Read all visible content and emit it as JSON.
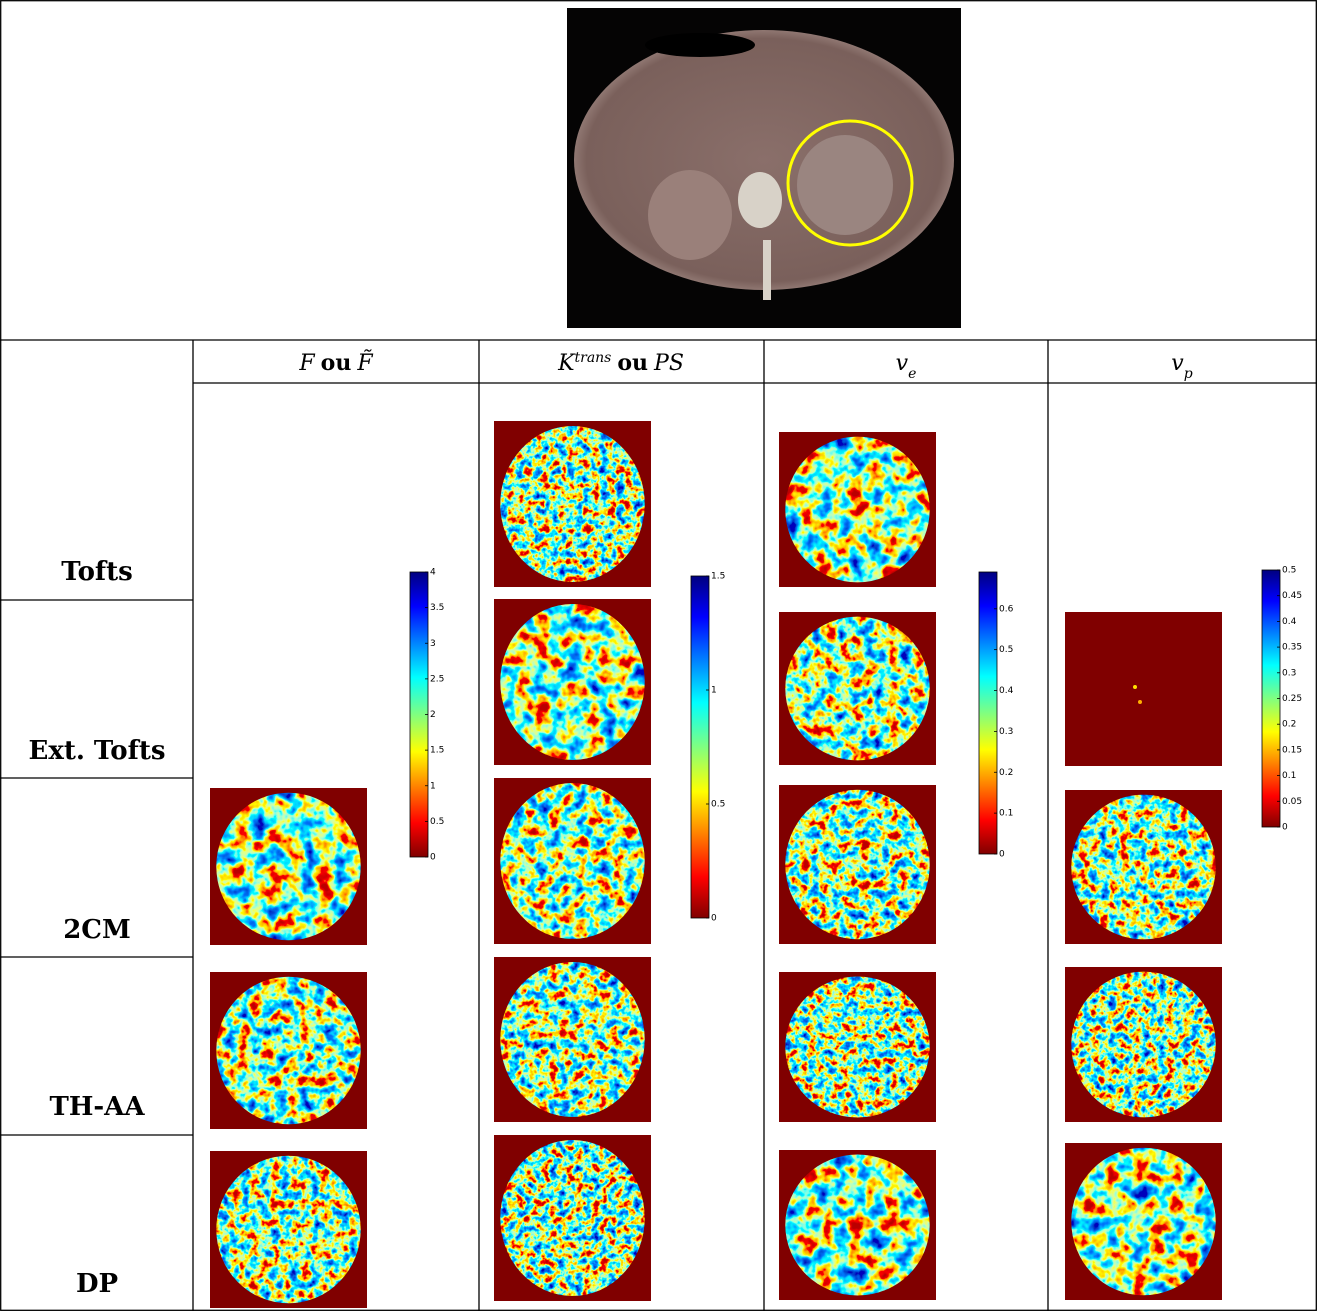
{
  "columns": [
    {
      "parts": [
        "F",
        "ou",
        "F̃"
      ]
    },
    {
      "parts": [
        "K",
        "trans",
        "ou",
        "PS"
      ]
    },
    {
      "parts": [
        "v",
        "e"
      ]
    },
    {
      "parts": [
        "v",
        "p"
      ]
    }
  ],
  "rows": [
    "Tofts",
    "Ext. Tofts",
    "2CM",
    "TH-AA",
    "DP"
  ],
  "colorbars": [
    {
      "range": [
        0,
        4
      ],
      "ticks": [
        0,
        0.5,
        1,
        1.5,
        2,
        2.5,
        3,
        3.5,
        4
      ]
    },
    {
      "range": [
        0,
        1.5
      ],
      "ticks": [
        0,
        0.5,
        1,
        1.5
      ]
    },
    {
      "range": [
        0,
        0.69
      ],
      "ticks": [
        0,
        0.1,
        0.2,
        0.3,
        0.4,
        0.5,
        0.6
      ]
    },
    {
      "range": [
        0,
        0.5
      ],
      "ticks": [
        0,
        0.05,
        0.1,
        0.15,
        0.2,
        0.25,
        0.3,
        0.35,
        0.4,
        0.45,
        0.5
      ]
    }
  ]
}
